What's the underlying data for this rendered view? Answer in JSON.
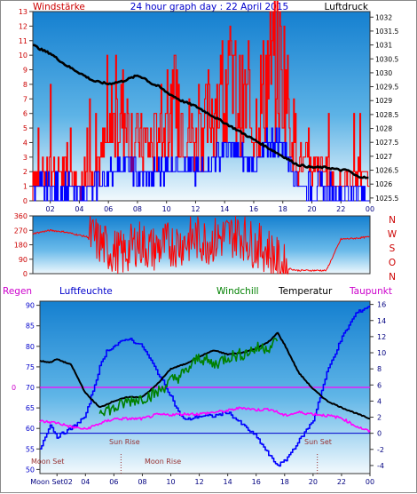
{
  "header": {
    "left_label": "Windstärke",
    "title": "24 hour graph day : 22 April 2015",
    "right_label": "Luftdruck"
  },
  "wind_dir": {
    "y_ticks": [
      "360",
      "270",
      "180",
      "90",
      "0"
    ],
    "compass": [
      "N",
      "W",
      "S",
      "O",
      "N"
    ]
  },
  "bottom": {
    "legend": {
      "regen": "Regen",
      "luftfeuchte": "Luftfeuchte",
      "windchill": "Windchill",
      "temperatur": "Temperatur",
      "taupunkt": "Taupunkt"
    },
    "left_ticks": [
      "90",
      "85",
      "80",
      "75",
      "70",
      "65",
      "60",
      "55",
      "50"
    ],
    "regen_zero": "0",
    "right_ticks": [
      "16",
      "14",
      "12",
      "10",
      "8",
      "6",
      "4",
      "2",
      "0",
      "-2",
      "-4"
    ],
    "x_ticks": [
      "Moon Set02",
      "04",
      "06",
      "08",
      "10",
      "12",
      "14",
      "16",
      "18",
      "20",
      "22",
      "00"
    ],
    "annotations": {
      "moon_set": "Moon Set",
      "sun_rise": "Sun Rise",
      "moon_rise": "Moon Rise",
      "sun_set": "Sun Set"
    }
  },
  "top_axes": {
    "left_ticks": [
      "13",
      "12",
      "11",
      "10",
      "9",
      "8",
      "7",
      "6",
      "5",
      "4",
      "3",
      "2",
      "1",
      "0"
    ],
    "right_ticks": [
      "1032",
      "1031.5",
      "1031",
      "1030.5",
      "1030",
      "1029.5",
      "1029",
      "1028.5",
      "1028",
      "1027.5",
      "1027",
      "1026.5",
      "1026",
      "1025.5"
    ],
    "x_ticks": [
      "02",
      "04",
      "06",
      "08",
      "10",
      "12",
      "14",
      "16",
      "18",
      "20",
      "22",
      "00"
    ]
  },
  "colors": {
    "wind": "#ff0000",
    "wind_avg": "#0000ff",
    "pressure": "#000000",
    "humidity": "#0000ff",
    "temperature": "#000000",
    "windchill": "#008000",
    "dewpoint": "#ff00ff",
    "axis_label": "#cc0000",
    "tick_blue": "#000080"
  },
  "chart_data": [
    {
      "type": "line",
      "title": "24 hour graph day : 22 April 2015",
      "xlabel": "hour",
      "x_range": [
        0.8,
        24
      ],
      "series": [
        {
          "name": "Luftdruck",
          "axis": "right",
          "unit": "hPa",
          "x": [
            0.8,
            1.5,
            2,
            3,
            4,
            5,
            6,
            7,
            8,
            8.5,
            9,
            9.5,
            10,
            11,
            12,
            13,
            14,
            15,
            16,
            17,
            18,
            19,
            20,
            21,
            22,
            22.5,
            23,
            24
          ],
          "values": [
            1031,
            1030.8,
            1030.7,
            1030.3,
            1030,
            1029.7,
            1029.6,
            1029.7,
            1029.9,
            1029.8,
            1029.6,
            1029.5,
            1029.3,
            1029,
            1028.8,
            1028.5,
            1028.2,
            1027.9,
            1027.6,
            1027.3,
            1027.0,
            1026.7,
            1026.6,
            1026.6,
            1026.5,
            1026.5,
            1026.3,
            1026.2
          ]
        },
        {
          "name": "Windstärke",
          "axis": "left",
          "x": [
            0.8,
            2,
            3,
            4,
            5,
            6,
            7,
            8,
            9,
            10,
            11,
            12,
            13,
            14,
            15,
            16,
            17,
            18,
            19,
            20,
            21,
            22,
            23,
            24
          ],
          "values": [
            2,
            2,
            2,
            1,
            2,
            4,
            6,
            4,
            4,
            5,
            6,
            4,
            6,
            8,
            7,
            5,
            9,
            9,
            3,
            2,
            2,
            1,
            2,
            1
          ]
        }
      ],
      "ylim_left": [
        0,
        13
      ],
      "ylim_right": [
        1025.4,
        1032.2
      ],
      "grid": false
    },
    {
      "type": "line",
      "title": "",
      "xlabel": "hour",
      "x_range": [
        0.8,
        24
      ],
      "series": [
        {
          "name": "Windrichtung",
          "unit": "deg",
          "x": [
            0.8,
            2,
            3,
            4,
            5,
            6,
            7,
            8,
            9,
            10,
            11,
            12,
            13,
            14,
            15,
            16,
            17,
            18,
            19,
            20,
            21,
            22,
            23,
            24
          ],
          "values": [
            250,
            270,
            260,
            240,
            220,
            150,
            120,
            200,
            150,
            180,
            190,
            220,
            200,
            230,
            250,
            180,
            150,
            40,
            20,
            20,
            20,
            215,
            220,
            230
          ]
        }
      ],
      "ylim": [
        0,
        360
      ],
      "grid": false
    },
    {
      "type": "line",
      "title": "",
      "xlabel": "hour",
      "x_range": [
        0.8,
        24
      ],
      "series": [
        {
          "name": "Luftfeuchte",
          "axis": "left",
          "unit": "%",
          "x": [
            0.8,
            1.5,
            2,
            3,
            4,
            5,
            5.5,
            6,
            7,
            8,
            9,
            10,
            10.5,
            11,
            12,
            13,
            14,
            15,
            16,
            17,
            17.5,
            18,
            19,
            20,
            21,
            22,
            23,
            24
          ],
          "values": [
            55,
            61,
            58,
            60,
            63,
            75,
            79,
            80,
            82,
            80,
            74,
            68,
            64,
            62,
            63,
            63,
            64,
            61,
            58,
            53,
            51,
            52,
            57,
            62,
            74,
            82,
            88,
            90
          ]
        },
        {
          "name": "Temperatur",
          "axis": "right",
          "unit": "°C",
          "x": [
            0.8,
            1.5,
            2,
            3,
            4,
            5,
            6,
            7,
            8,
            9,
            10,
            11,
            12,
            13,
            14,
            15,
            16,
            17,
            17.5,
            18,
            19,
            20,
            21,
            22,
            23,
            24
          ],
          "values": [
            9,
            8.8,
            9.2,
            8.5,
            5.0,
            3.2,
            4.0,
            4.5,
            4.5,
            6.0,
            8.0,
            8.6,
            9.5,
            10.3,
            9.8,
            10.0,
            10.5,
            11.5,
            12.5,
            11.0,
            7.5,
            5.5,
            4.0,
            3.2,
            2.5,
            1.8
          ]
        },
        {
          "name": "Windchill",
          "axis": "right",
          "unit": "°C",
          "x": [
            5,
            6,
            7,
            8,
            9,
            10,
            11,
            12,
            13,
            14,
            15,
            16,
            17,
            17.5
          ],
          "values": [
            3.0,
            3.0,
            4.0,
            4.4,
            5.0,
            6.5,
            7.5,
            9.5,
            8.5,
            9.5,
            9.8,
            10.5,
            10.8,
            11.5
          ]
        },
        {
          "name": "Taupunkt",
          "axis": "right",
          "unit": "°C",
          "x": [
            0.8,
            2,
            3,
            4,
            5,
            6,
            7,
            8,
            9,
            10,
            11,
            12,
            13,
            14,
            15,
            16,
            17,
            18,
            19,
            20,
            21,
            22,
            23,
            24
          ],
          "values": [
            1.5,
            1.3,
            0.8,
            0.5,
            1.2,
            1.8,
            1.8,
            1.8,
            2.3,
            2.3,
            2.4,
            2.4,
            2.6,
            2.8,
            3.2,
            2.9,
            3.0,
            2.2,
            2.6,
            2.4,
            2.2,
            1.9,
            0.9,
            0.2
          ]
        },
        {
          "name": "Regen",
          "axis": "left-marker",
          "unit": "mm",
          "x": [
            0.8,
            24
          ],
          "values": [
            0,
            0
          ]
        }
      ],
      "ylim_left": [
        49,
        91
      ],
      "ylim_right": [
        -5,
        16.4
      ],
      "grid": false
    }
  ]
}
